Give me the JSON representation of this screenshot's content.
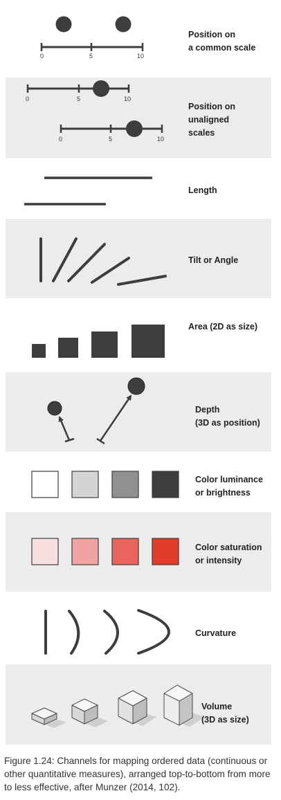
{
  "channels": [
    {
      "label": [
        "Position on",
        "a common scale"
      ],
      "shaded": false
    },
    {
      "label": [
        "Position on",
        "unaligned",
        "scales"
      ],
      "shaded": true
    },
    {
      "label": [
        "Length"
      ],
      "shaded": false
    },
    {
      "label": [
        "Tilt or Angle"
      ],
      "shaded": true
    },
    {
      "label": [
        "Area (2D as size)"
      ],
      "shaded": false
    },
    {
      "label": [
        "Depth",
        "(3D as position)"
      ],
      "shaded": true
    },
    {
      "label": [
        "Color luminance",
        "or brightness"
      ],
      "shaded": false
    },
    {
      "label": [
        "Color saturation",
        "or intensity"
      ],
      "shaded": true
    },
    {
      "label": [
        "Curvature"
      ],
      "shaded": false
    },
    {
      "label": [
        "Volume",
        "(3D as size)"
      ],
      "shaded": true
    }
  ],
  "scale_ticks": [
    "0",
    "5",
    "10"
  ],
  "colors": {
    "band": "#ececec",
    "mark": "#3d3d3d",
    "luminance": [
      "#ffffff",
      "#d4d4d4",
      "#909090",
      "#3d3d3d"
    ],
    "saturation": [
      "#f9e0e0",
      "#f1a3a1",
      "#e9645c",
      "#e33b2a"
    ]
  },
  "caption": "Figure 1.24: Channels for mapping ordered data (continuous or other quantitative measures), arranged top-to-bottom from more to less effective, after Munzer (2014, 102)."
}
